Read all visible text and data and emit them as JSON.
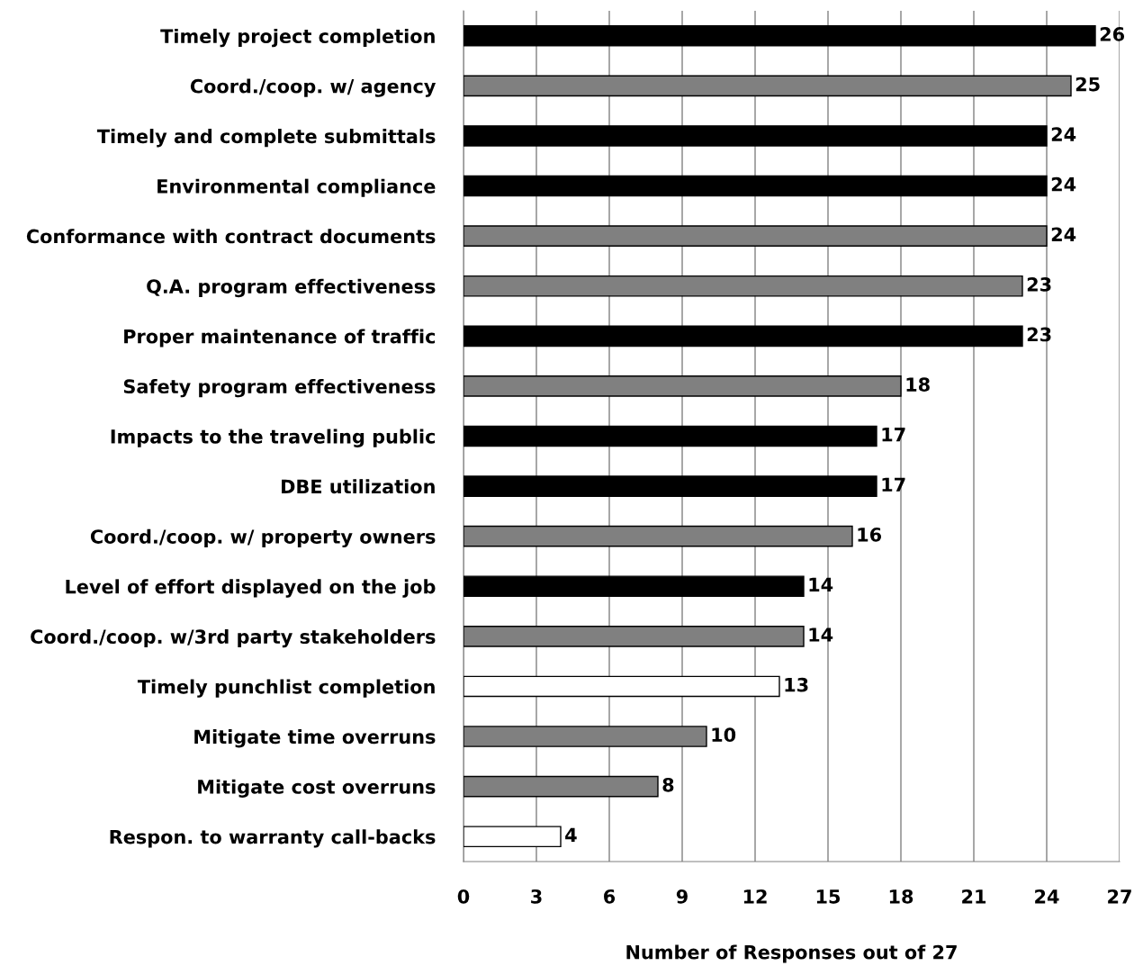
{
  "chart_data": {
    "type": "bar",
    "orientation": "horizontal",
    "xlabel": "Number of Responses out of 27",
    "categories": [
      "Timely project completion",
      "Coord./coop. w/ agency",
      "Timely and complete submittals",
      "Environmental compliance",
      "Conformance with contract documents",
      "Q.A. program effectiveness",
      "Proper maintenance of traffic",
      "Safety program effectiveness",
      "Impacts to the traveling public",
      "DBE utilization",
      "Coord./coop. w/ property owners",
      "Level of effort displayed on the job",
      "Coord./coop. w/3rd party stakeholders",
      "Timely punchlist completion",
      "Mitigate time overruns",
      "Mitigate cost overruns",
      "Respon. to warranty call-backs"
    ],
    "values": [
      26,
      25,
      24,
      24,
      24,
      23,
      23,
      18,
      17,
      17,
      16,
      14,
      14,
      13,
      10,
      8,
      4
    ],
    "colors": [
      "#000000",
      "#808080",
      "#000000",
      "#000000",
      "#808080",
      "#808080",
      "#000000",
      "#808080",
      "#000000",
      "#000000",
      "#808080",
      "#000000",
      "#808080",
      "#ffffff",
      "#808080",
      "#808080",
      "#ffffff"
    ],
    "xlim": [
      0,
      27
    ],
    "xticks": [
      0,
      3,
      6,
      9,
      12,
      15,
      18,
      21,
      24,
      27
    ],
    "grid": "x",
    "data_labels": true
  }
}
